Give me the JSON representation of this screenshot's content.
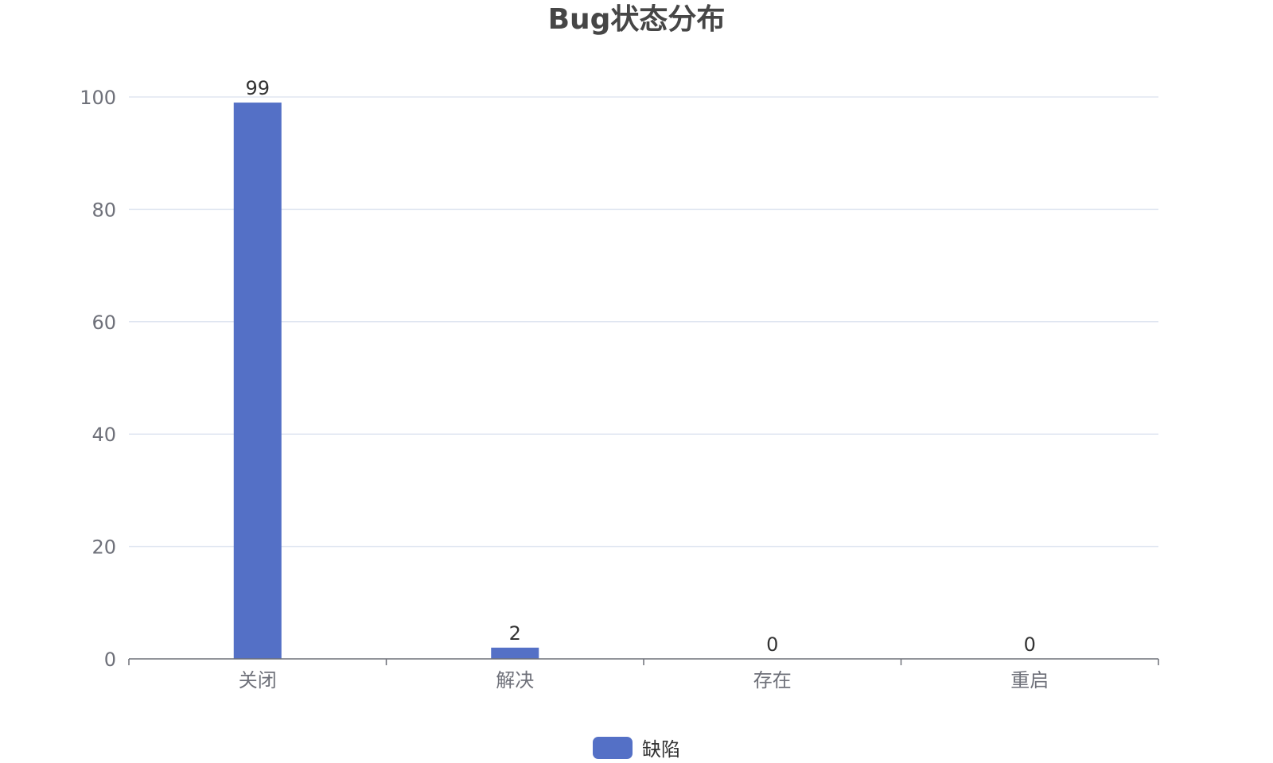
{
  "colors": {
    "bar": "#5470c6",
    "grid": "#e0e6f1",
    "axis": "#6e7079",
    "tick_label": "#6e7079",
    "data_label": "#333333",
    "title": "#464646"
  },
  "chart_data": {
    "type": "bar",
    "title": "Bug状态分布",
    "categories": [
      "关闭",
      "解决",
      "存在",
      "重启"
    ],
    "series": [
      {
        "name": "缺陷",
        "values": [
          99,
          2,
          0,
          0
        ]
      }
    ],
    "ylim": [
      0,
      100
    ],
    "yticks": [
      "0",
      "20",
      "40",
      "60",
      "80",
      "100"
    ],
    "grid": true,
    "legend_position": "bottom-center",
    "data_labels": [
      "99",
      "2",
      "0",
      "0"
    ]
  }
}
